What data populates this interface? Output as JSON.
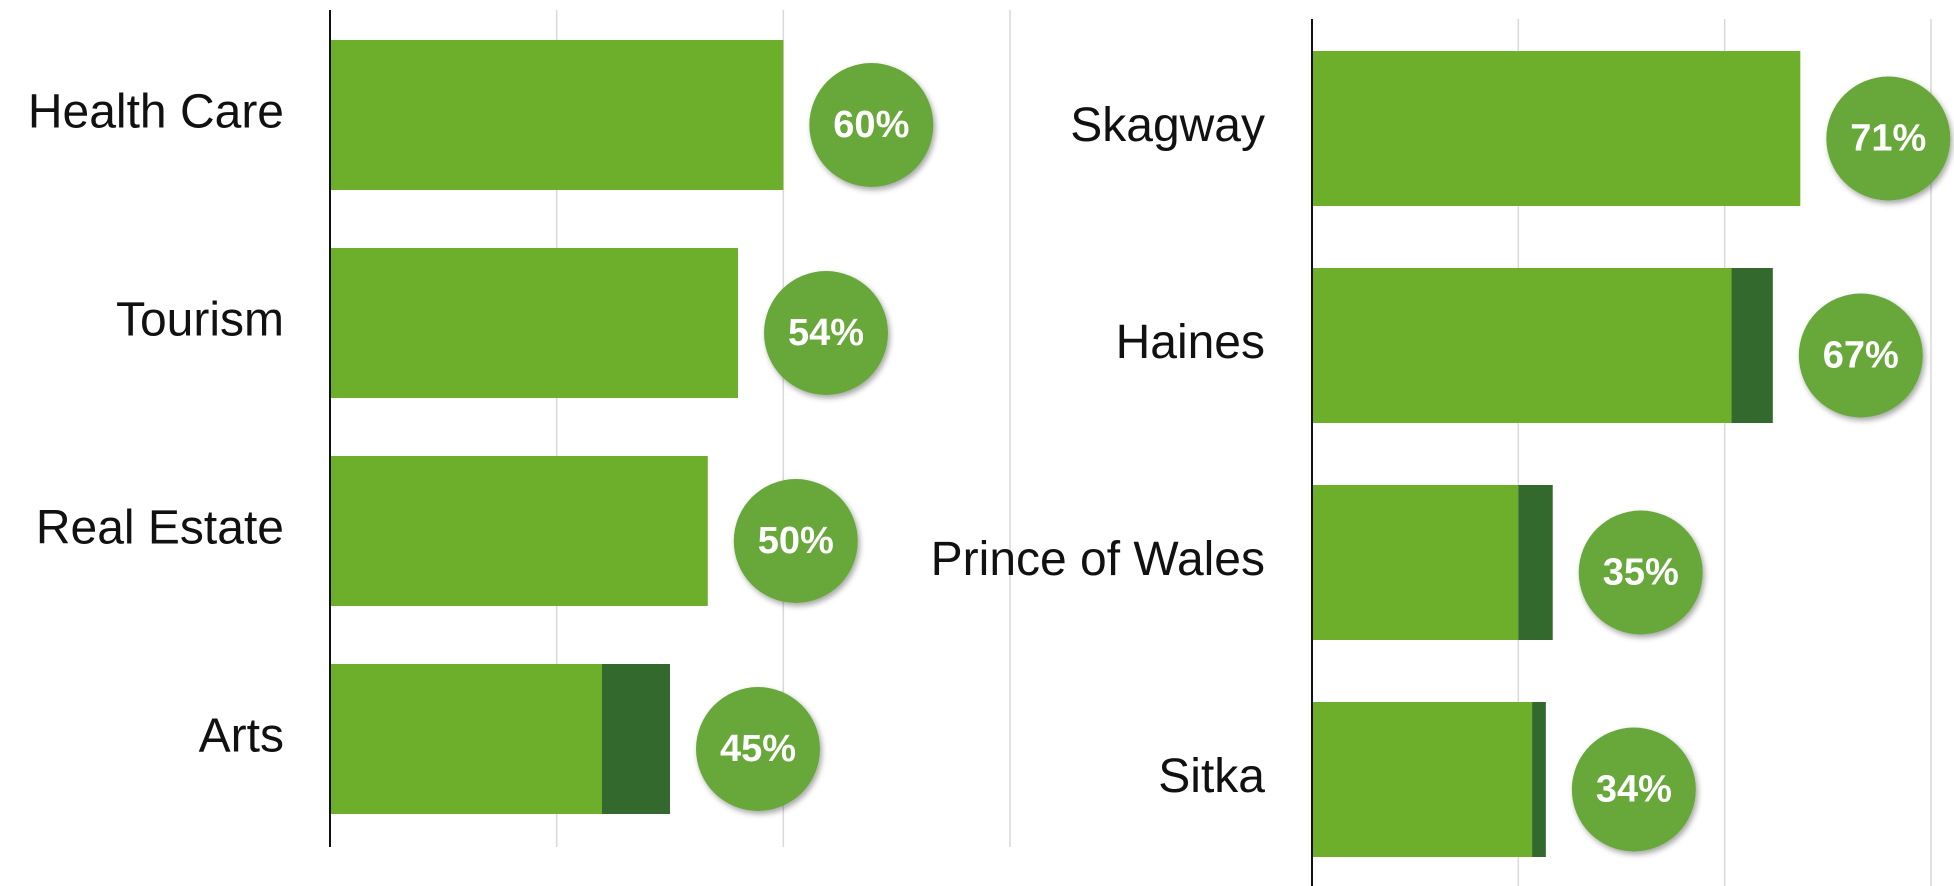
{
  "chart_data": [
    {
      "type": "stacked-barh",
      "categories": [
        "Health Care",
        "Tourism",
        "Real Estate",
        "Arts"
      ],
      "series": [
        {
          "color": "#6daf2a",
          "values": [
            60,
            54,
            50,
            36
          ]
        },
        {
          "color": "#33692c",
          "values": [
            0,
            0,
            0,
            9
          ]
        }
      ],
      "totals": [
        60,
        54,
        50,
        45
      ],
      "value_labels": [
        "60%",
        "54%",
        "50%",
        "45%"
      ],
      "label_color": "#68a83a",
      "xlim": [
        0,
        90
      ],
      "xticks": [
        0,
        30,
        60,
        90
      ],
      "grid": true
    },
    {
      "type": "stacked-barh",
      "categories": [
        "Skagway",
        "Haines",
        "Prince of Wales",
        "Sitka"
      ],
      "series": [
        {
          "color": "#6daf2a",
          "values": [
            71,
            61,
            30,
            32
          ]
        },
        {
          "color": "#33692c",
          "values": [
            0,
            6,
            5,
            2
          ]
        }
      ],
      "totals": [
        71,
        67,
        35,
        34
      ],
      "value_labels": [
        "71%",
        "67%",
        "35%",
        "34%"
      ],
      "label_color": "#68a83a",
      "xlim": [
        0,
        90
      ],
      "xticks": [
        0,
        30,
        60,
        90
      ],
      "grid": true
    }
  ]
}
